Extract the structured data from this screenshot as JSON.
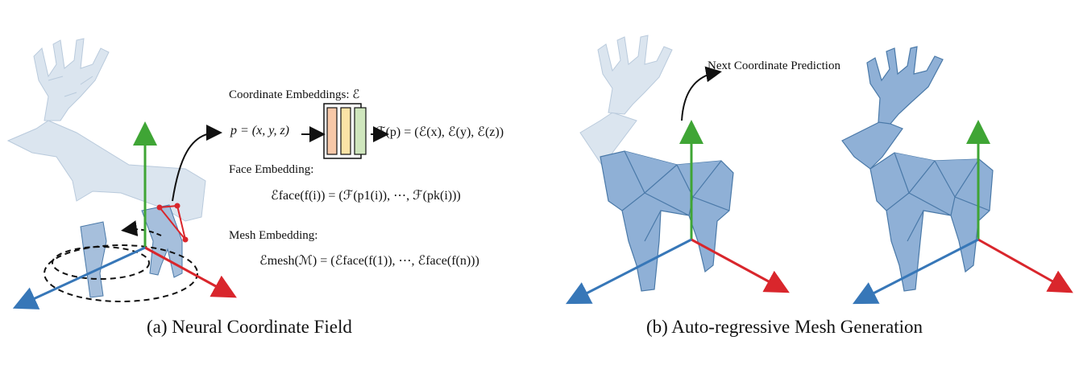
{
  "captions": {
    "a": "(a) Neural Coordinate Field",
    "b": "(b) Auto-regressive Mesh Generation"
  },
  "annotations": {
    "next_coordinate": "Next Coordinate Prediction",
    "coordinate_embeddings": "Coordinate Embeddings: ℰ",
    "face_embedding": "Face Embedding:",
    "mesh_embedding": "Mesh Embedding:"
  },
  "equations": {
    "point": "p = (x, y, z)",
    "coord_field": "ℱ(p) = (ℰ(x), ℰ(y), ℰ(z))",
    "face": "ℰface(f(i)) = (ℱ(p1(i)), ⋯, ℱ(pk(i)))",
    "mesh": "ℰmesh(ℳ) = (ℰface(f(1)), ⋯, ℰface(f(n)))"
  },
  "colors": {
    "axis_x": "#d9262c",
    "axis_y": "#3fa535",
    "axis_z": "#3777b8",
    "mesh_fill": "#8fb0d6",
    "mesh_edge": "#4a79a8",
    "ghost_fill": "#dbe5ef",
    "embed_orange": "#f7c8a8",
    "embed_yellow": "#fbe3a6",
    "embed_green": "#cfe6bd",
    "face_highlight": "#e0242a"
  }
}
